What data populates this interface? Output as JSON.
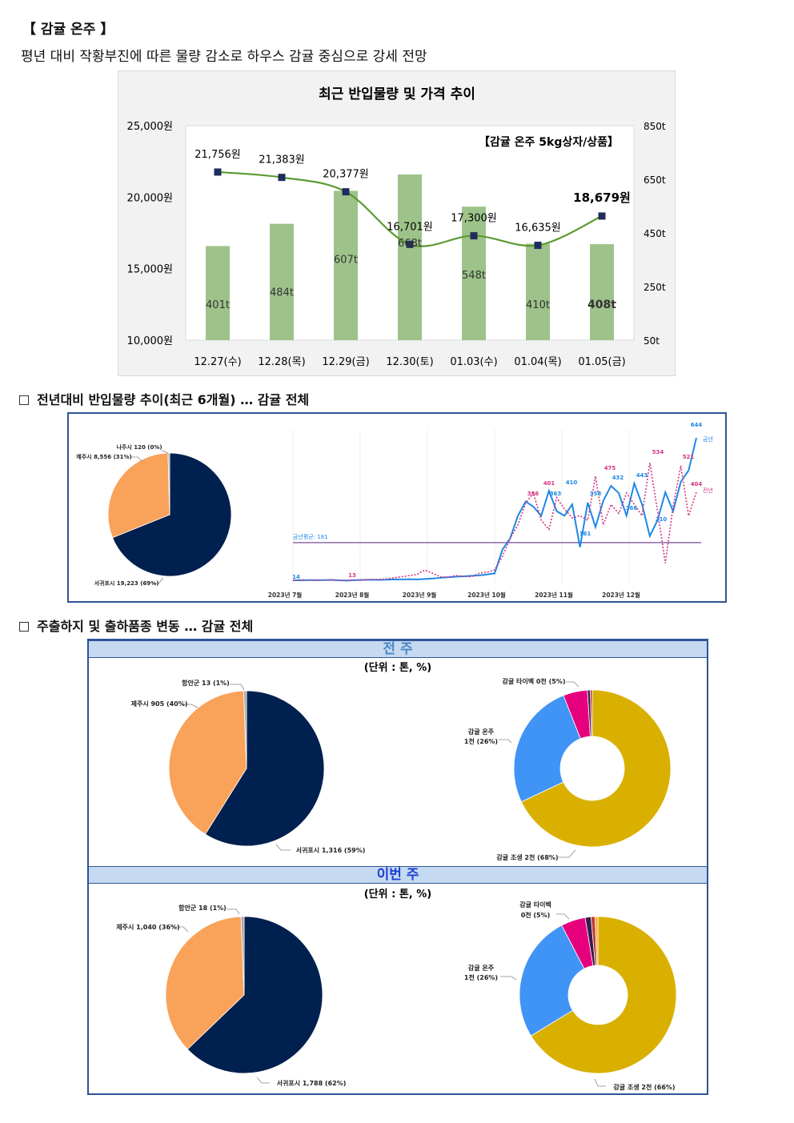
{
  "header": {
    "title": "【 감귤 온주 】",
    "subtitle": "평년 대비 작황부진에 따른 물량 감소로 하우스 감귤 중심으로 강세 전망"
  },
  "price_chart": {
    "chart_data": {
      "type": "bar+line",
      "title": "최근 반입물량 및 가격 추이",
      "annotation": "【감귤 온주 5kg상자/상품】",
      "categories": [
        "12.27(수)",
        "12.28(목)",
        "12.29(금)",
        "12.30(토)",
        "01.03(수)",
        "01.04(목)",
        "01.05(금)"
      ],
      "volume_values": [
        401,
        484,
        607,
        668,
        548,
        410,
        408
      ],
      "volume_labels": [
        "401t",
        "484t",
        "607t",
        "668t",
        "548t",
        "410t",
        "408t"
      ],
      "price_values": [
        21756,
        21383,
        20377,
        16701,
        17300,
        16635,
        18679
      ],
      "price_labels": [
        "21,756원",
        "21,383원",
        "20,377원",
        "16,701원",
        "17,300원",
        "16,635원",
        "18,679원"
      ],
      "left_axis_ticks": [
        "25,000원",
        "20,000원",
        "15,000원",
        "10,000원"
      ],
      "left_ylim": [
        10000,
        25000
      ],
      "right_axis_ticks": [
        "850t",
        "650t",
        "450t",
        "250t",
        "50t"
      ],
      "right_ylim": [
        50,
        850
      ],
      "bar_color": "#9dc38a",
      "line_color": "#5a9a32",
      "marker_color": "#1f2d5a"
    }
  },
  "section2": {
    "heading": "전년대비 반입물량 추이(최근 6개월) … 감귤 전체",
    "pie": {
      "chart_data": {
        "type": "pie",
        "slices": [
          {
            "label": "서귀포시 19,223 (69%)",
            "value": 19223,
            "color": "#00204f"
          },
          {
            "label": "제주시 8,556 (31%)",
            "value": 8556,
            "color": "#f9a25a"
          },
          {
            "label": "나주시 120 (0%)",
            "value": 120,
            "color": "#a6a6a6"
          }
        ]
      }
    },
    "trend": {
      "chart_data": {
        "type": "line",
        "x_labels": [
          "2023년 7월",
          "2023년 8월",
          "2023년 9월",
          "2023년 10월",
          "2023년 11월",
          "2023년 12월"
        ],
        "avg_label": "금년평균: 181",
        "avg_value": 181,
        "ylim": [
          0,
          680
        ],
        "series": [
          {
            "name": "금년",
            "color": "#1e88e5",
            "values": [
              14,
              14,
              15,
              15,
              15,
              16,
              14,
              13,
              15,
              16,
              17,
              16,
              17,
              18,
              18,
              19,
              18,
              20,
              22,
              25,
              28,
              30,
              32,
              34,
              36,
              40,
              45,
              150,
              200,
              300,
              363,
              340,
              300,
              410,
              320,
              300,
              350,
              161,
              358,
              250,
              366,
              432,
              400,
              300,
              443,
              350,
              210,
              280,
              404,
              320,
              450,
              500,
              644
            ]
          },
          {
            "name": "전년",
            "color": "#d63384",
            "values": [
              15,
              16,
              15,
              14,
              15,
              16,
              13,
              15,
              14,
              16,
              17,
              18,
              20,
              25,
              30,
              35,
              40,
              60,
              45,
              30,
              28,
              35,
              32,
              30,
              45,
              50,
              60,
              120,
              200,
              260,
              356,
              401,
              280,
              240,
              380,
              330,
              290,
              300,
              280,
              475,
              260,
              350,
              310,
              400,
              350,
              300,
              534,
              320,
              90,
              340,
              521,
              300,
              404
            ]
          }
        ],
        "point_labels": [
          "14",
          "13",
          "356",
          "401",
          "363",
          "410",
          "161",
          "358",
          "475",
          "432",
          "366",
          "443",
          "534",
          "210",
          "521",
          "404",
          "644"
        ]
      }
    }
  },
  "section3": {
    "heading": "주출하지 및 출하품종 변동 … 감귤 전체",
    "prev_week": {
      "band": "전 주",
      "unit": "(단위 : 톤, %)",
      "origin_pie": {
        "chart_data": {
          "type": "pie",
          "slices": [
            {
              "label": "서귀포시 1,316 (59%)",
              "value": 1316,
              "color": "#00204f"
            },
            {
              "label": "제주시 905 (40%)",
              "value": 905,
              "color": "#f9a25a"
            },
            {
              "label": "함안군 13 (1%)",
              "value": 13,
              "color": "#a6a6a6"
            }
          ]
        }
      },
      "variety_donut": {
        "chart_data": {
          "type": "pie",
          "slices": [
            {
              "label": "감귤 조생 2천 (68%)",
              "value": 68,
              "color": "#d9b000"
            },
            {
              "label": "감귤 온주 1천 (26%)",
              "value": 26,
              "color": "#4094f5"
            },
            {
              "label": "감귤 타이벡 0천 (5%)",
              "value": 5,
              "color": "#e6007e"
            },
            {
              "label": "",
              "value": 0.6,
              "color": "#3b1b4e"
            },
            {
              "label": "",
              "value": 0.4,
              "color": "#c0392b"
            }
          ]
        }
      }
    },
    "this_week": {
      "band": "이번 주",
      "unit": "(단위 : 톤, %)",
      "origin_pie": {
        "chart_data": {
          "type": "pie",
          "slices": [
            {
              "label": "서귀포시 1,788 (62%)",
              "value": 1788,
              "color": "#00204f"
            },
            {
              "label": "제주시 1,040 (36%)",
              "value": 1040,
              "color": "#f9a25a"
            },
            {
              "label": "함안군 18 (1%)",
              "value": 18,
              "color": "#a6a6a6"
            }
          ]
        }
      },
      "variety_donut": {
        "chart_data": {
          "type": "pie",
          "slices": [
            {
              "label": "감귤 조생 2천 (66%)",
              "value": 66,
              "color": "#d9b000"
            },
            {
              "label": "감귤 온주 1천 (26%)",
              "value": 26,
              "color": "#4094f5"
            },
            {
              "label": "감귤 타이벡 0천 (5%)",
              "value": 5,
              "color": "#e6007e"
            },
            {
              "label": "",
              "value": 1.2,
              "color": "#3b1b4e"
            },
            {
              "label": "",
              "value": 0.8,
              "color": "#c0392b"
            },
            {
              "label": "",
              "value": 0.6,
              "color": "#f4a940"
            }
          ]
        }
      }
    }
  }
}
